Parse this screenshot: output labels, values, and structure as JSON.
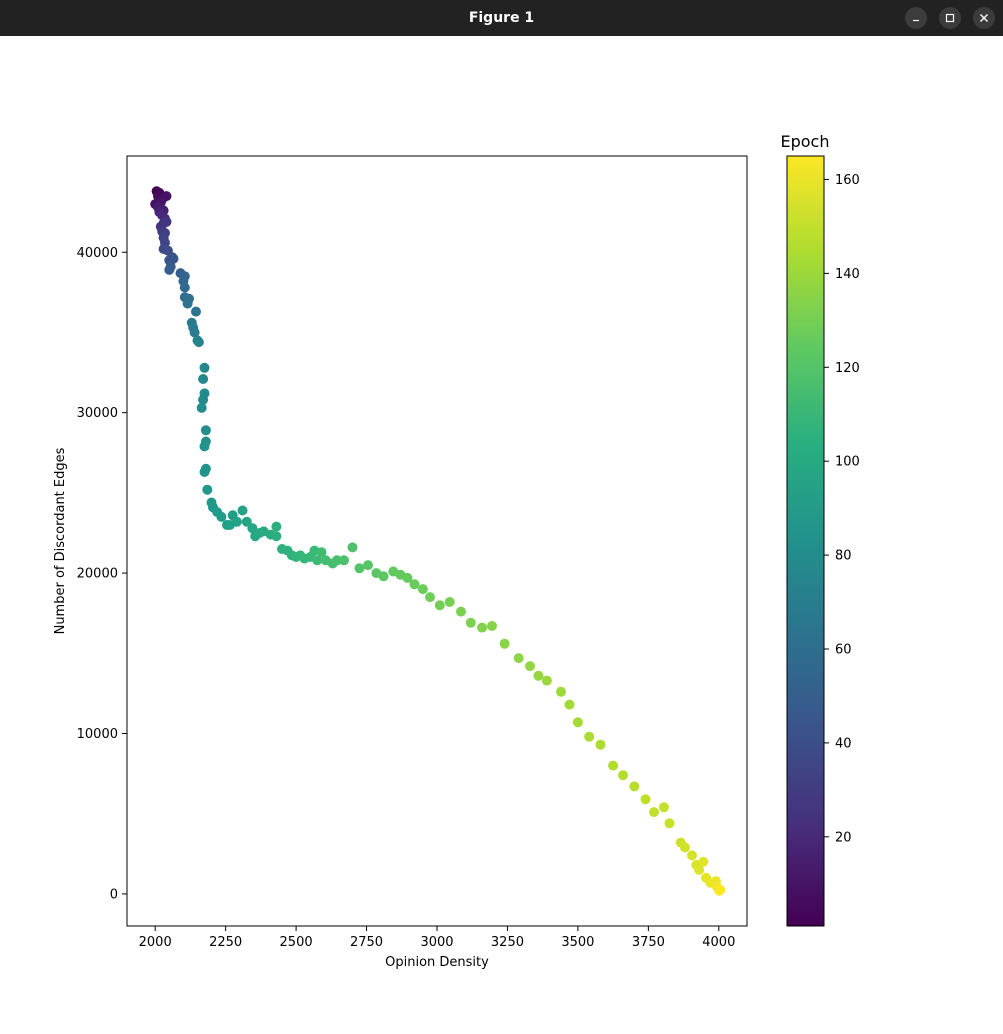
{
  "window": {
    "title": "Figure 1",
    "controls": [
      "minimize-icon",
      "maximize-icon",
      "close-icon"
    ]
  },
  "chart_data": {
    "type": "scatter",
    "title": "",
    "xlabel": "Opinion Density",
    "ylabel": "Number of Discordant Edges",
    "xlim": [
      1900,
      4100
    ],
    "ylim": [
      -2000,
      46000
    ],
    "xticks": [
      2000,
      2250,
      2500,
      2750,
      3000,
      3250,
      3500,
      3750,
      4000
    ],
    "yticks": [
      0,
      10000,
      20000,
      30000,
      40000
    ],
    "grid": false,
    "colormap": "viridis",
    "colorbar": {
      "label": "Epoch",
      "range": [
        1,
        165
      ],
      "ticks": [
        20,
        40,
        60,
        80,
        100,
        120,
        140,
        160
      ]
    },
    "points": [
      [
        2005,
        43800,
        1
      ],
      [
        2015,
        43700,
        3
      ],
      [
        2010,
        43500,
        5
      ],
      [
        2025,
        43300,
        6
      ],
      [
        2000,
        43000,
        8
      ],
      [
        2040,
        43500,
        9
      ],
      [
        2020,
        43100,
        11
      ],
      [
        2010,
        42800,
        13
      ],
      [
        2030,
        42600,
        15
      ],
      [
        2015,
        42500,
        17
      ],
      [
        2025,
        42300,
        19
      ],
      [
        2035,
        42100,
        21
      ],
      [
        2030,
        41800,
        23
      ],
      [
        2020,
        41600,
        25
      ],
      [
        2040,
        41900,
        27
      ],
      [
        2025,
        41300,
        29
      ],
      [
        2035,
        41200,
        31
      ],
      [
        2030,
        40900,
        33
      ],
      [
        2035,
        40600,
        35
      ],
      [
        2030,
        40200,
        37
      ],
      [
        2045,
        40100,
        39
      ],
      [
        2060,
        39700,
        41
      ],
      [
        2050,
        39500,
        43
      ],
      [
        2065,
        39600,
        45
      ],
      [
        2055,
        39100,
        47
      ],
      [
        2050,
        38900,
        49
      ],
      [
        2090,
        38700,
        51
      ],
      [
        2105,
        38500,
        53
      ],
      [
        2100,
        38200,
        55
      ],
      [
        2105,
        37800,
        57
      ],
      [
        2105,
        37200,
        59
      ],
      [
        2120,
        37100,
        61
      ],
      [
        2115,
        36800,
        63
      ],
      [
        2145,
        36300,
        65
      ],
      [
        2130,
        35600,
        67
      ],
      [
        2135,
        35300,
        69
      ],
      [
        2140,
        35000,
        71
      ],
      [
        2150,
        34500,
        73
      ],
      [
        2155,
        34400,
        75
      ],
      [
        2175,
        32800,
        77
      ],
      [
        2170,
        32100,
        78
      ],
      [
        2175,
        31200,
        79
      ],
      [
        2170,
        30800,
        80
      ],
      [
        2165,
        30300,
        81
      ],
      [
        2180,
        28900,
        82
      ],
      [
        2180,
        28200,
        83
      ],
      [
        2175,
        27900,
        84
      ],
      [
        2180,
        26500,
        85
      ],
      [
        2175,
        26300,
        86
      ],
      [
        2185,
        25200,
        87
      ],
      [
        2200,
        24400,
        88
      ],
      [
        2205,
        24100,
        89
      ],
      [
        2220,
        23800,
        90
      ],
      [
        2235,
        23500,
        91
      ],
      [
        2255,
        23000,
        92
      ],
      [
        2275,
        23600,
        93
      ],
      [
        2265,
        23000,
        94
      ],
      [
        2290,
        23200,
        95
      ],
      [
        2310,
        23900,
        96
      ],
      [
        2325,
        23200,
        97
      ],
      [
        2345,
        22800,
        98
      ],
      [
        2355,
        22300,
        99
      ],
      [
        2370,
        22500,
        100
      ],
      [
        2385,
        22600,
        101
      ],
      [
        2410,
        22400,
        102
      ],
      [
        2430,
        22300,
        103
      ],
      [
        2430,
        22900,
        104
      ],
      [
        2450,
        21500,
        105
      ],
      [
        2470,
        21400,
        106
      ],
      [
        2485,
        21100,
        107
      ],
      [
        2500,
        21000,
        108
      ],
      [
        2515,
        21100,
        109
      ],
      [
        2530,
        20900,
        110
      ],
      [
        2550,
        21000,
        111
      ],
      [
        2565,
        21400,
        112
      ],
      [
        2575,
        20800,
        113
      ],
      [
        2590,
        21300,
        114
      ],
      [
        2605,
        20800,
        115
      ],
      [
        2630,
        20600,
        116
      ],
      [
        2645,
        20800,
        117
      ],
      [
        2670,
        20800,
        118
      ],
      [
        2700,
        21600,
        119
      ],
      [
        2725,
        20300,
        120
      ],
      [
        2755,
        20500,
        121
      ],
      [
        2785,
        20000,
        122
      ],
      [
        2810,
        19800,
        123
      ],
      [
        2845,
        20100,
        124
      ],
      [
        2870,
        19900,
        125
      ],
      [
        2895,
        19700,
        126
      ],
      [
        2920,
        19300,
        127
      ],
      [
        2950,
        19000,
        128
      ],
      [
        2975,
        18500,
        129
      ],
      [
        3010,
        18000,
        130
      ],
      [
        3045,
        18200,
        131
      ],
      [
        3085,
        17600,
        132
      ],
      [
        3120,
        16900,
        133
      ],
      [
        3160,
        16600,
        134
      ],
      [
        3195,
        16700,
        135
      ],
      [
        3240,
        15600,
        136
      ],
      [
        3290,
        14700,
        137
      ],
      [
        3330,
        14200,
        138
      ],
      [
        3360,
        13600,
        139
      ],
      [
        3390,
        13300,
        140
      ],
      [
        3440,
        12600,
        141
      ],
      [
        3470,
        11800,
        142
      ],
      [
        3500,
        10700,
        143
      ],
      [
        3540,
        9800,
        144
      ],
      [
        3580,
        9300,
        145
      ],
      [
        3625,
        8000,
        146
      ],
      [
        3660,
        7400,
        147
      ],
      [
        3700,
        6700,
        148
      ],
      [
        3740,
        5900,
        149
      ],
      [
        3770,
        5100,
        150
      ],
      [
        3805,
        5400,
        151
      ],
      [
        3825,
        4400,
        152
      ],
      [
        3865,
        3200,
        153
      ],
      [
        3880,
        2900,
        154
      ],
      [
        3905,
        2400,
        155
      ],
      [
        3920,
        1800,
        156
      ],
      [
        3930,
        1500,
        157
      ],
      [
        3945,
        2000,
        158
      ],
      [
        3955,
        1000,
        159
      ],
      [
        3970,
        700,
        160
      ],
      [
        3990,
        800,
        161
      ],
      [
        3995,
        400,
        162
      ],
      [
        4005,
        250,
        163
      ],
      [
        4002,
        200,
        165
      ]
    ]
  }
}
